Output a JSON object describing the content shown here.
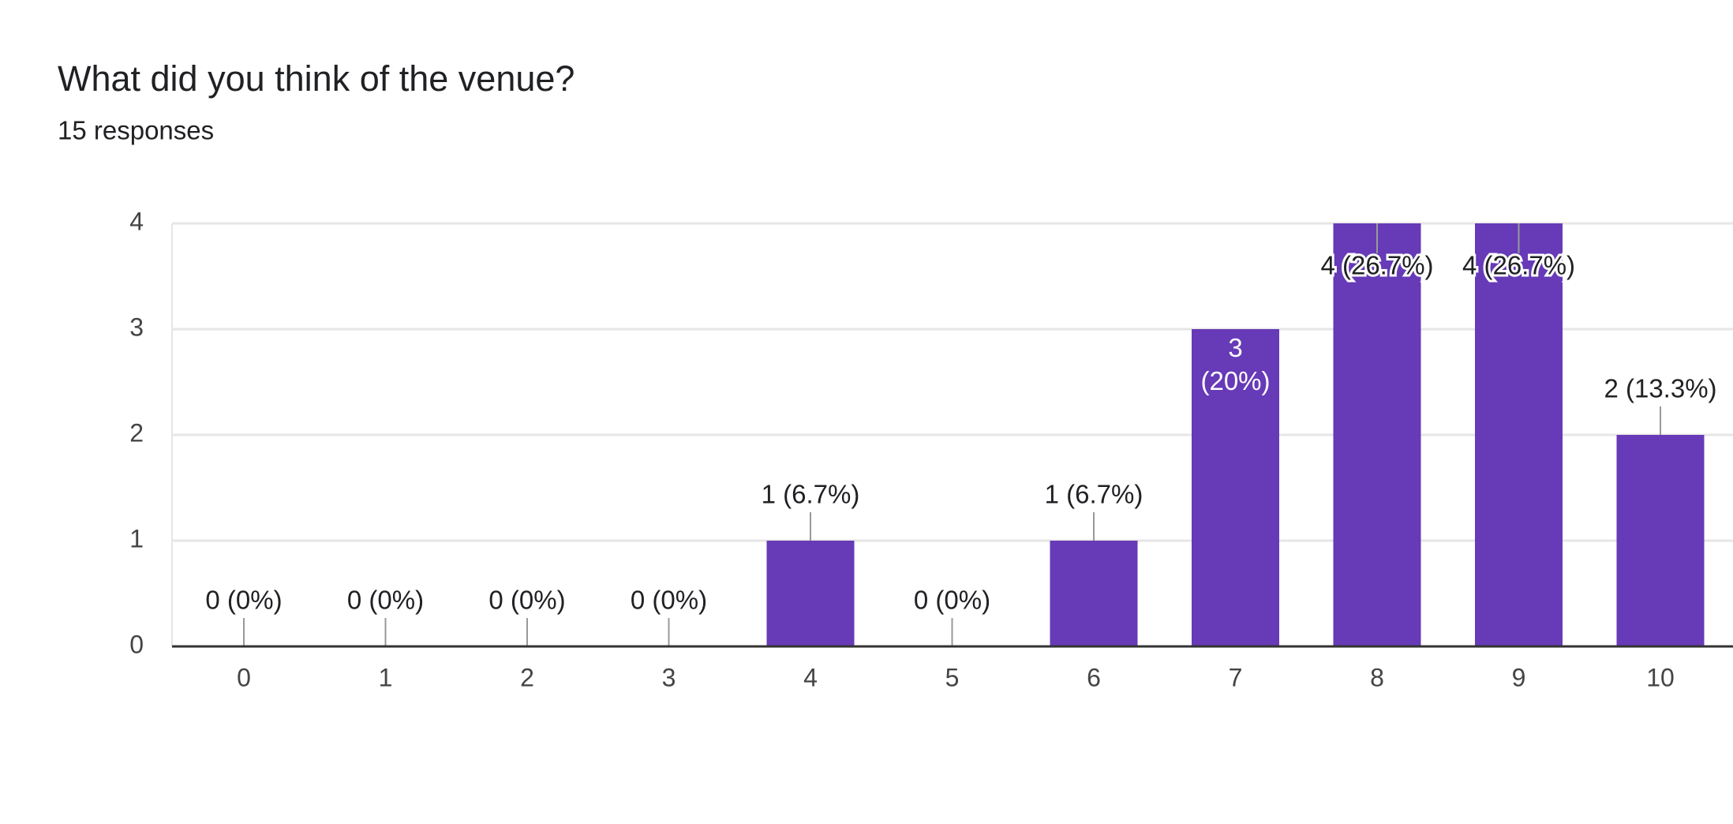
{
  "chart_data": {
    "type": "bar",
    "title": "What did you think of the venue?",
    "subtitle": "15 responses",
    "categories": [
      "0",
      "1",
      "2",
      "3",
      "4",
      "5",
      "6",
      "7",
      "8",
      "9",
      "10"
    ],
    "values": [
      0,
      0,
      0,
      0,
      1,
      0,
      1,
      3,
      4,
      4,
      2
    ],
    "value_labels": [
      "0 (0%)",
      "0 (0%)",
      "0 (0%)",
      "0 (0%)",
      "1 (6.7%)",
      "0 (0%)",
      "1 (6.7%)",
      "3 (20%)",
      "4 (26.7%)",
      "4 (26.7%)",
      "2 (13.3%)"
    ],
    "color": "#673ab7",
    "ylim": [
      0,
      4
    ],
    "yticks": [
      0,
      1,
      2,
      3,
      4
    ],
    "grid": true
  }
}
